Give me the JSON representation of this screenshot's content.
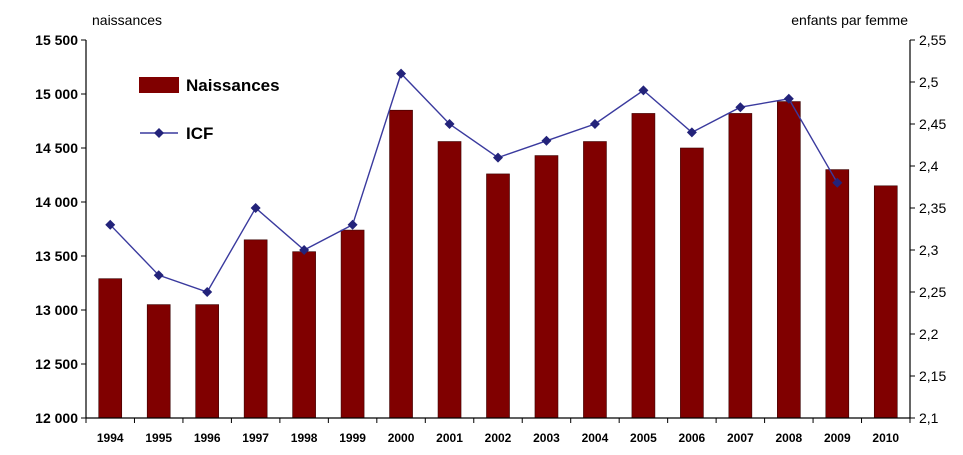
{
  "chart_data": {
    "type": "bar",
    "categories": [
      "1994",
      "1995",
      "1996",
      "1997",
      "1998",
      "1999",
      "2000",
      "2001",
      "2002",
      "2003",
      "2004",
      "2005",
      "2006",
      "2007",
      "2008",
      "2009",
      "2010"
    ],
    "ylabel_left": "naissances",
    "ylabel_right": "enfants par femme",
    "ylim_left": [
      12000,
      15500
    ],
    "ylim_right": [
      2.1,
      2.55
    ],
    "yticks_left": [
      "12 000",
      "12 500",
      "13 000",
      "13 500",
      "14 000",
      "14 500",
      "15 000",
      "15 500"
    ],
    "yticks_right": [
      "2,1",
      "2,15",
      "2,2",
      "2,25",
      "2,3",
      "2,35",
      "2,4",
      "2,45",
      "2,5",
      "2,55"
    ],
    "grid": false,
    "legend_position": "top-left",
    "series": [
      {
        "name": "Naissances",
        "type": "bar",
        "axis": "left",
        "color": "#800000",
        "values": [
          13290,
          13050,
          13050,
          13650,
          13540,
          13740,
          14850,
          14560,
          14260,
          14430,
          14560,
          14820,
          14500,
          14820,
          14930,
          14300,
          14150
        ]
      },
      {
        "name": "ICF",
        "type": "line",
        "axis": "right",
        "color": "#3a3a9e",
        "values": [
          2.33,
          2.27,
          2.25,
          2.35,
          2.3,
          2.33,
          2.51,
          2.45,
          2.41,
          2.43,
          2.45,
          2.49,
          2.44,
          2.47,
          2.48,
          2.38,
          null
        ]
      }
    ]
  }
}
